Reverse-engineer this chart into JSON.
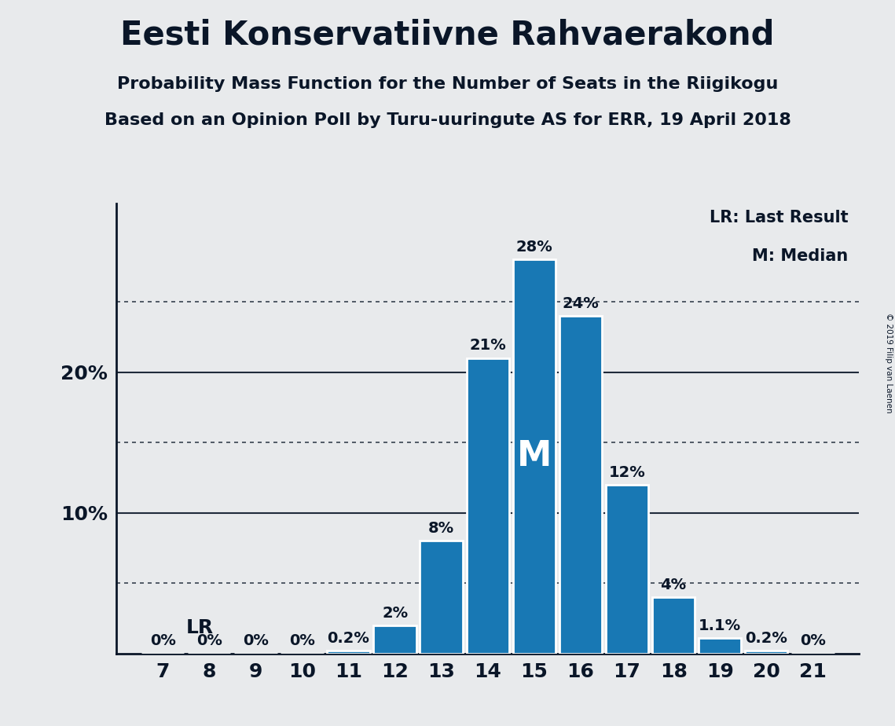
{
  "title": "Eesti Konservatiivne Rahvaerakond",
  "subtitle1": "Probability Mass Function for the Number of Seats in the Riigikogu",
  "subtitle2": "Based on an Opinion Poll by Turu-uuringute AS for ERR, 19 April 2018",
  "copyright": "© 2019 Filip van Laenen",
  "seats": [
    7,
    8,
    9,
    10,
    11,
    12,
    13,
    14,
    15,
    16,
    17,
    18,
    19,
    20,
    21
  ],
  "probabilities": [
    0.0,
    0.0,
    0.0,
    0.0,
    0.2,
    2.0,
    8.0,
    21.0,
    28.0,
    24.0,
    12.0,
    4.0,
    1.1,
    0.2,
    0.0
  ],
  "labels": [
    "0%",
    "0%",
    "0%",
    "0%",
    "0.2%",
    "2%",
    "8%",
    "21%",
    "28%",
    "24%",
    "12%",
    "4%",
    "1.1%",
    "0.2%",
    "0%"
  ],
  "bar_color": "#1878b4",
  "bar_edge_color": "#ffffff",
  "background_color": "#e8eaec",
  "text_color": "#0a1628",
  "lr_seat": 7,
  "median_seat": 15,
  "dotted_lines": [
    5.0,
    15.0,
    25.0
  ],
  "solid_lines": [
    10.0,
    20.0
  ],
  "legend_lr": "LR: Last Result",
  "legend_m": "M: Median",
  "lr_label": "LR",
  "median_label": "M",
  "ylim": [
    0,
    32
  ],
  "xlim_left": 6.0,
  "xlim_right": 22.0,
  "title_fontsize": 30,
  "subtitle_fontsize": 16,
  "tick_fontsize": 18,
  "label_fontsize": 14,
  "legend_fontsize": 15,
  "lr_fontsize": 18,
  "median_fontsize": 32
}
